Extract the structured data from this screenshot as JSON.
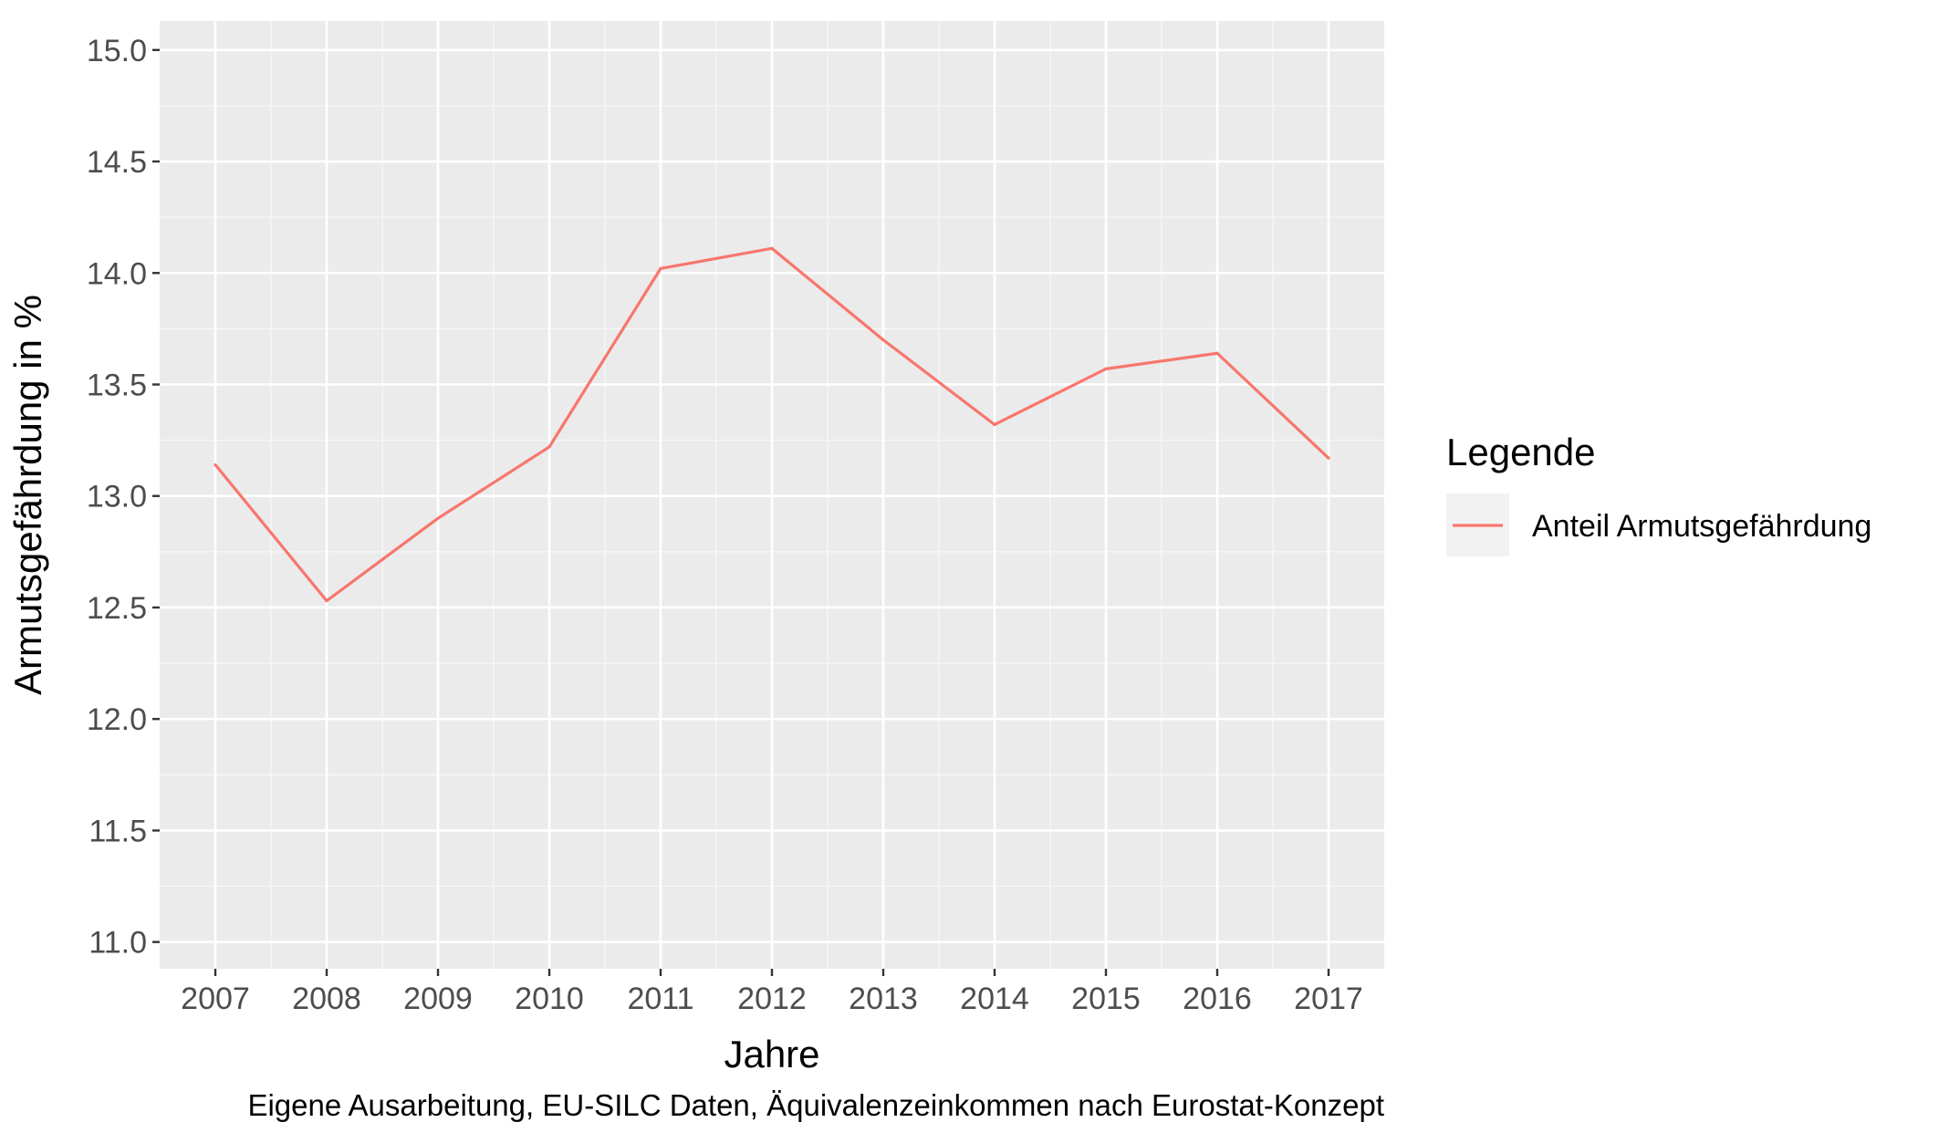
{
  "chart_data": {
    "type": "line",
    "xlabel": "Jahre",
    "ylabel": "Armutsgefährdung in %",
    "caption": "Eigene Ausarbeitung, EU-SILC Daten, Äquivalenzeinkommen nach Eurostat-Konzept",
    "x": [
      2007,
      2008,
      2009,
      2010,
      2011,
      2012,
      2013,
      2014,
      2015,
      2016,
      2017
    ],
    "x_tick_labels": [
      "2007",
      "2008",
      "2009",
      "2010",
      "2011",
      "2012",
      "2013",
      "2014",
      "2015",
      "2016",
      "2017"
    ],
    "y_ticks": [
      11.0,
      11.5,
      12.0,
      12.5,
      13.0,
      13.5,
      14.0,
      14.5,
      15.0
    ],
    "y_tick_labels": [
      "11.0",
      "11.5",
      "12.0",
      "12.5",
      "13.0",
      "13.5",
      "14.0",
      "14.5",
      "15.0"
    ],
    "ylim": [
      10.88,
      15.13
    ],
    "xlim": [
      2006.5,
      2017.5
    ],
    "grid": true,
    "legend": {
      "title": "Legende",
      "position": "right"
    },
    "series": [
      {
        "name": "Anteil Armutsgefährdung",
        "color": "#F8766D",
        "values": [
          13.14,
          12.53,
          12.9,
          13.22,
          14.02,
          14.11,
          13.7,
          13.32,
          13.57,
          13.64,
          13.17
        ]
      }
    ]
  },
  "colors": {
    "panel_background": "#EBEBEB",
    "grid_major": "#FFFFFF",
    "tick_text": "#4D4D4D"
  }
}
